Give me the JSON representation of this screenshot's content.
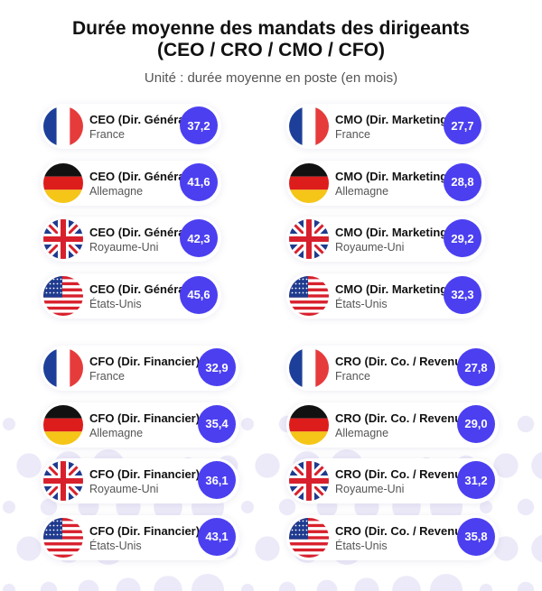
{
  "title_line1": "Durée moyenne des mandats des dirigeants",
  "title_line2": "(CEO / CRO / CMO / CFO)",
  "subtitle": "Unité : durée moyenne en poste (en mois)",
  "colors": {
    "badge": "#4b3ff0",
    "dots": "#eceaf8"
  },
  "chart_data": {
    "type": "table",
    "title": "Durée moyenne des mandats des dirigeants (CEO / CRO / CMO / CFO)",
    "subtitle": "Unité : durée moyenne en poste (en mois)",
    "groups": [
      {
        "role": "CEO (Dir. Général)",
        "items": [
          {
            "country": "France",
            "flag": "france-flag-icon",
            "value": "37,2"
          },
          {
            "country": "Allemagne",
            "flag": "germany-flag-icon",
            "value": "41,6"
          },
          {
            "country": "Royaume-Uni",
            "flag": "uk-flag-icon",
            "value": "42,3"
          },
          {
            "country": "États-Unis",
            "flag": "usa-flag-icon",
            "value": "45,6"
          }
        ]
      },
      {
        "role": "CMO (Dir. Marketing)",
        "items": [
          {
            "country": "France",
            "flag": "france-flag-icon",
            "value": "27,7"
          },
          {
            "country": "Allemagne",
            "flag": "germany-flag-icon",
            "value": "28,8"
          },
          {
            "country": "Royaume-Uni",
            "flag": "uk-flag-icon",
            "value": "29,2"
          },
          {
            "country": "États-Unis",
            "flag": "usa-flag-icon",
            "value": "32,3"
          }
        ]
      },
      {
        "role": "CFO (Dir. Financier)",
        "items": [
          {
            "country": "France",
            "flag": "france-flag-icon",
            "value": "32,9"
          },
          {
            "country": "Allemagne",
            "flag": "germany-flag-icon",
            "value": "35,4"
          },
          {
            "country": "Royaume-Uni",
            "flag": "uk-flag-icon",
            "value": "36,1"
          },
          {
            "country": "États-Unis",
            "flag": "usa-flag-icon",
            "value": "43,1"
          }
        ]
      },
      {
        "role": "CRO (Dir. Co. / Revenue)",
        "items": [
          {
            "country": "France",
            "flag": "france-flag-icon",
            "value": "27,8"
          },
          {
            "country": "Allemagne",
            "flag": "germany-flag-icon",
            "value": "29,0"
          },
          {
            "country": "Royaume-Uni",
            "flag": "uk-flag-icon",
            "value": "31,2"
          },
          {
            "country": "États-Unis",
            "flag": "usa-flag-icon",
            "value": "35,8"
          }
        ]
      }
    ]
  }
}
